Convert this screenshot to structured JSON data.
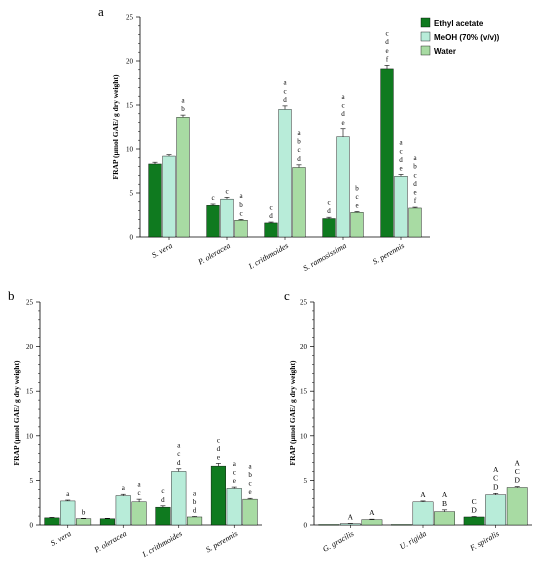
{
  "colors": {
    "Ethyl acetate": "#0f7a1f",
    "MeOH (70% (v/v))": "#b8ecd9",
    "Water": "#a8dba3"
  },
  "legend": {
    "items": [
      "Ethyl acetate",
      "MeOH (70% (v/v))",
      "Water"
    ],
    "placement": "top-right"
  },
  "chart_data": [
    {
      "panel": "a",
      "type": "bar",
      "ylabel": "FRAP (µmol GAE/ g dry weight)",
      "ylim": [
        0,
        25
      ],
      "yticks": [
        0,
        5,
        10,
        15,
        20,
        25
      ],
      "categories": [
        "S. vera",
        "P. oleracea",
        "I. crithmoides",
        "S. ramosissima",
        "S. perennis"
      ],
      "series": [
        {
          "name": "Ethyl acetate",
          "values": [
            8.3,
            3.6,
            1.6,
            2.1,
            19.1
          ],
          "errors": [
            0.2,
            0.15,
            0.1,
            0.15,
            0.4
          ],
          "labels": [
            [],
            [
              "c"
            ],
            [
              "c",
              "d"
            ],
            [
              "c",
              "d"
            ],
            [
              "c",
              "d",
              "e",
              "f"
            ]
          ]
        },
        {
          "name": "MeOH (70% (v/v))",
          "values": [
            9.2,
            4.3,
            14.5,
            11.4,
            6.9
          ],
          "errors": [
            0.15,
            0.2,
            0.4,
            0.9,
            0.2
          ],
          "labels": [
            [],
            [
              "c"
            ],
            [
              "a",
              "c",
              "d"
            ],
            [
              "a",
              "c",
              "d",
              "e"
            ],
            [
              "a",
              "c",
              "d",
              "e"
            ]
          ]
        },
        {
          "name": "Water",
          "values": [
            13.6,
            1.9,
            7.9,
            2.8,
            3.3
          ],
          "errors": [
            0.25,
            0.1,
            0.3,
            0.1,
            0.1
          ],
          "labels": [
            [
              "a",
              "b"
            ],
            [
              "a",
              "b",
              "c"
            ],
            [
              "a",
              "b",
              "c",
              "d"
            ],
            [
              "b",
              "c",
              "e"
            ],
            [
              "a",
              "b",
              "c",
              "d",
              "e",
              "f"
            ]
          ]
        }
      ]
    },
    {
      "panel": "b",
      "type": "bar",
      "ylabel": "FRAP (µmol GAE/ g dry weight)",
      "ylim": [
        0,
        25
      ],
      "yticks": [
        0,
        5,
        10,
        15,
        20,
        25
      ],
      "categories": [
        "S. vera",
        "P. oleracea",
        "I. crithmoides",
        "S. perennis"
      ],
      "series": [
        {
          "name": "Ethyl acetate",
          "values": [
            0.8,
            0.7,
            2.0,
            6.6
          ],
          "errors": [
            0.05,
            0.05,
            0.15,
            0.3
          ],
          "labels": [
            [],
            [],
            [
              "c",
              "d"
            ],
            [
              "c",
              "d",
              "e"
            ]
          ]
        },
        {
          "name": "MeOH (70% (v/v))",
          "values": [
            2.7,
            3.3,
            6.0,
            4.1
          ],
          "errors": [
            0.1,
            0.15,
            0.3,
            0.15
          ],
          "labels": [
            [
              "a"
            ],
            [
              "a"
            ],
            [
              "a",
              "c",
              "d"
            ],
            [
              "a",
              "c",
              "e"
            ]
          ]
        },
        {
          "name": "Water",
          "values": [
            0.7,
            2.6,
            0.9,
            2.9
          ],
          "errors": [
            0.05,
            0.3,
            0.05,
            0.1
          ],
          "labels": [
            [
              "b"
            ],
            [
              "a",
              "c"
            ],
            [
              "a",
              "b",
              "d"
            ],
            [
              "a",
              "b",
              "c",
              "e"
            ]
          ]
        }
      ]
    },
    {
      "panel": "c",
      "type": "bar",
      "ylabel": "FRAP (µmol GAE/ g dry weight)",
      "ylim": [
        0,
        25
      ],
      "yticks": [
        0,
        5,
        10,
        15,
        20,
        25
      ],
      "categories": [
        "G. gracilis",
        "U. rigida",
        "F. spiralis"
      ],
      "series": [
        {
          "name": "Ethyl acetate",
          "values": [
            0.05,
            0.05,
            0.9
          ],
          "errors": [
            0,
            0,
            0.05
          ],
          "labels": [
            [],
            [],
            [
              "C",
              "D"
            ]
          ]
        },
        {
          "name": "MeOH (70% (v/v))",
          "values": [
            0.15,
            2.6,
            3.4
          ],
          "errors": [
            0.02,
            0.1,
            0.15
          ],
          "labels": [
            [
              "A"
            ],
            [
              "A"
            ],
            [
              "A",
              "C",
              "D"
            ]
          ]
        },
        {
          "name": "Water",
          "values": [
            0.6,
            1.5,
            4.2
          ],
          "errors": [
            0.05,
            0.2,
            0.1
          ],
          "labels": [
            [
              "A"
            ],
            [
              "A",
              "B"
            ],
            [
              "A",
              "C",
              "D"
            ]
          ]
        }
      ]
    }
  ]
}
